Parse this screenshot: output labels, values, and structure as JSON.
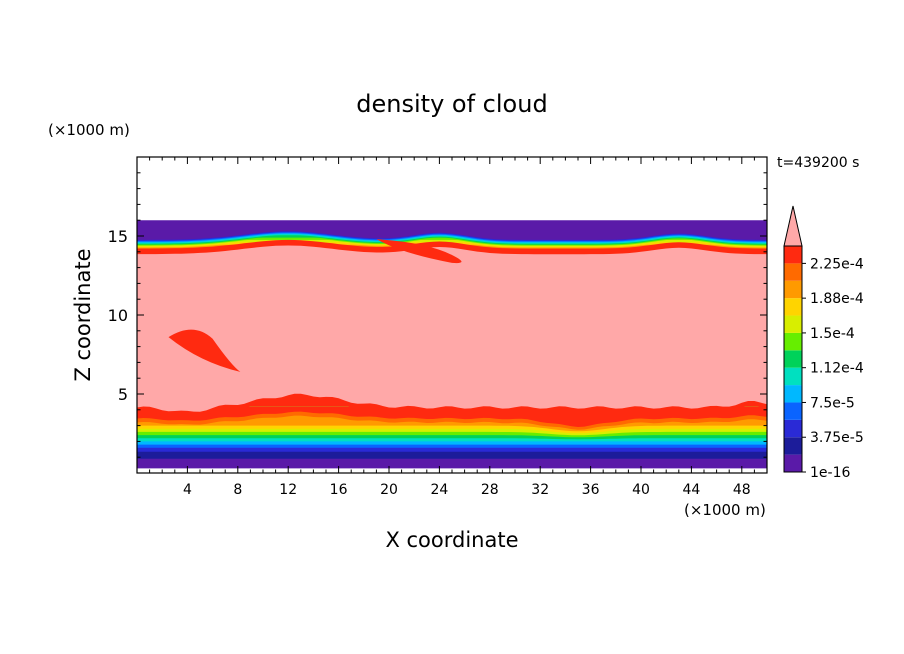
{
  "chart_data": {
    "type": "heatmap",
    "title": "density of cloud",
    "time_label": "t=439200 s",
    "xlabel": "X coordinate",
    "ylabel": "Z coordinate",
    "x_unit": "(×1000 m)",
    "y_unit": "(×1000 m)",
    "xlim": [
      0,
      50
    ],
    "ylim": [
      0,
      20
    ],
    "x_ticks": [
      "4",
      "8",
      "12",
      "16",
      "20",
      "24",
      "28",
      "32",
      "36",
      "40",
      "44",
      "48"
    ],
    "y_ticks": [
      "5",
      "10",
      "15"
    ],
    "colorbar": {
      "labels": [
        "1e-16",
        "3.75e-5",
        "7.5e-5",
        "1.12e-4",
        "1.5e-4",
        "1.88e-4",
        "2.25e-4"
      ],
      "colors": [
        "#5a1aa8",
        "#1c1c9a",
        "#2a2ad6",
        "#0a64ff",
        "#00b8ff",
        "#00e0c0",
        "#00d25a",
        "#66ee00",
        "#d8ee00",
        "#ffd400",
        "#ff9a00",
        "#ff6a00",
        "#ff2a10",
        "#ffa8a8"
      ],
      "extend_max": true
    },
    "fields": {
      "background": "#ffffff",
      "cloud_core": "#ffa8a8",
      "cloud_top_z": 16,
      "cloud_base_z": 0.3
    }
  }
}
